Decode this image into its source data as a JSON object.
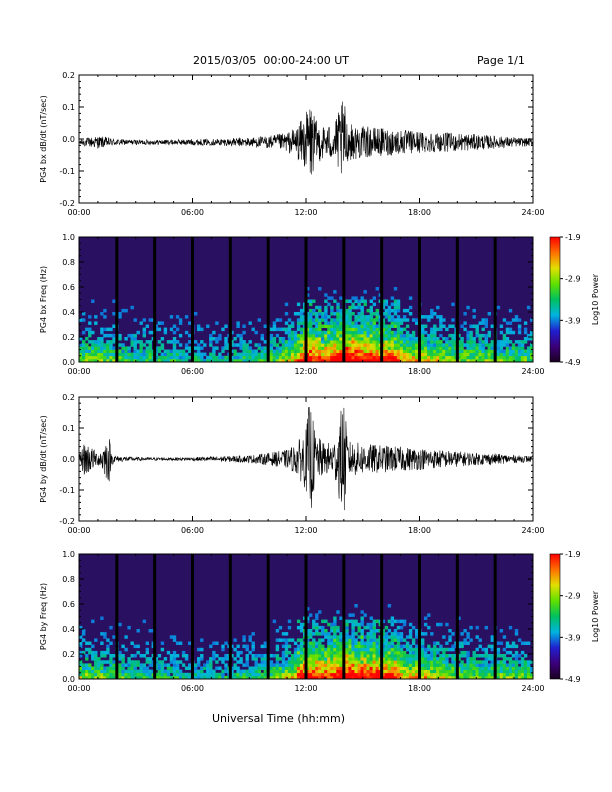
{
  "header": {
    "date_range": "2015/03/05  00:00-24:00 UT",
    "page": "Page 1/1"
  },
  "footer": {
    "xlabel": "Universal Time (hh:mm)"
  },
  "colors": {
    "colorbar": [
      "#1a0020",
      "#3b007a",
      "#2020d0",
      "#00b4e0",
      "#00c060",
      "#60e000",
      "#e0e000",
      "#ff7000",
      "#ff0000"
    ],
    "background_spectrogram": "#2a1060",
    "trace": "#000000"
  },
  "chart_data": [
    {
      "type": "line",
      "ylabel": "PG4 bx dB/dt (nT/sec)",
      "x_ticks": [
        "00:00",
        "06:00",
        "12:00",
        "18:00",
        "24:00"
      ],
      "y_ticks": [
        "-0.2",
        "-0.1",
        "0.0",
        "0.1",
        "0.2"
      ],
      "xlim": [
        0,
        24
      ],
      "ylim": [
        -0.2,
        0.2
      ],
      "series": [
        {
          "x": [
            0,
            1,
            2,
            3,
            4,
            5,
            6,
            7,
            8,
            9,
            10,
            11,
            11.5,
            12,
            12.2,
            12.5,
            13,
            13.5,
            14,
            14.2,
            15,
            16,
            17,
            18,
            19,
            20,
            21,
            22,
            23,
            24
          ],
          "amplitude": [
            0.01,
            0.02,
            0.01,
            0.008,
            0.008,
            0.008,
            0.01,
            0.01,
            0.012,
            0.015,
            0.02,
            0.03,
            0.05,
            0.09,
            0.14,
            0.07,
            0.05,
            0.06,
            0.14,
            0.06,
            0.05,
            0.045,
            0.04,
            0.035,
            0.03,
            0.03,
            0.025,
            0.02,
            0.015,
            0.012
          ],
          "offset": -0.01
        }
      ]
    },
    {
      "type": "heatmap",
      "ylabel": "PG4 bx Freq (Hz)",
      "x_ticks": [
        "00:00",
        "06:00",
        "12:00",
        "18:00",
        "24:00"
      ],
      "y_ticks": [
        "0.0",
        "0.2",
        "0.4",
        "0.6",
        "0.8",
        "1.0"
      ],
      "xlim": [
        0,
        24
      ],
      "ylim": [
        0,
        1.0
      ],
      "colorbar": {
        "label": "Log10 Power",
        "ticks": [
          "-1.9",
          "-2.9",
          "-3.9",
          "-4.9"
        ],
        "range": [
          -4.9,
          -1.9
        ]
      },
      "gap_times": [
        2,
        4,
        6,
        8,
        10,
        12,
        14,
        16,
        18,
        20,
        22
      ]
    },
    {
      "type": "line",
      "ylabel": "PG4 by dB/dt (nT/sec)",
      "x_ticks": [
        "00:00",
        "06:00",
        "12:00",
        "18:00",
        "24:00"
      ],
      "y_ticks": [
        "-0.2",
        "-0.1",
        "0.0",
        "0.1",
        "0.2"
      ],
      "xlim": [
        0,
        24
      ],
      "ylim": [
        -0.2,
        0.2
      ],
      "series": [
        {
          "x": [
            0,
            0.3,
            1,
            1.6,
            1.7,
            2,
            3,
            4,
            5,
            6,
            7,
            8,
            9,
            10,
            11,
            11.5,
            12,
            12.2,
            12.5,
            13,
            13.5,
            14,
            14.2,
            15,
            16,
            17,
            18,
            19,
            20,
            21,
            22,
            23,
            24
          ],
          "amplitude": [
            0.01,
            0.06,
            0.02,
            0.08,
            0.02,
            0.01,
            0.006,
            0.005,
            0.005,
            0.006,
            0.008,
            0.01,
            0.012,
            0.02,
            0.03,
            0.05,
            0.1,
            0.2,
            0.08,
            0.05,
            0.06,
            0.2,
            0.06,
            0.05,
            0.045,
            0.04,
            0.035,
            0.03,
            0.025,
            0.02,
            0.018,
            0.012,
            0.01
          ],
          "offset": 0.0
        }
      ]
    },
    {
      "type": "heatmap",
      "ylabel": "PG4 by Freq (Hz)",
      "x_ticks": [
        "00:00",
        "06:00",
        "12:00",
        "18:00",
        "24:00"
      ],
      "y_ticks": [
        "0.0",
        "0.2",
        "0.4",
        "0.6",
        "0.8",
        "1.0"
      ],
      "xlim": [
        0,
        24
      ],
      "ylim": [
        0,
        1.0
      ],
      "colorbar": {
        "label": "Log10 Power",
        "ticks": [
          "-1.9",
          "-2.9",
          "-3.9",
          "-4.9"
        ],
        "range": [
          -4.9,
          -1.9
        ]
      },
      "gap_times": [
        2,
        4,
        6,
        8,
        10,
        12,
        14,
        16,
        18,
        20,
        22
      ]
    }
  ]
}
